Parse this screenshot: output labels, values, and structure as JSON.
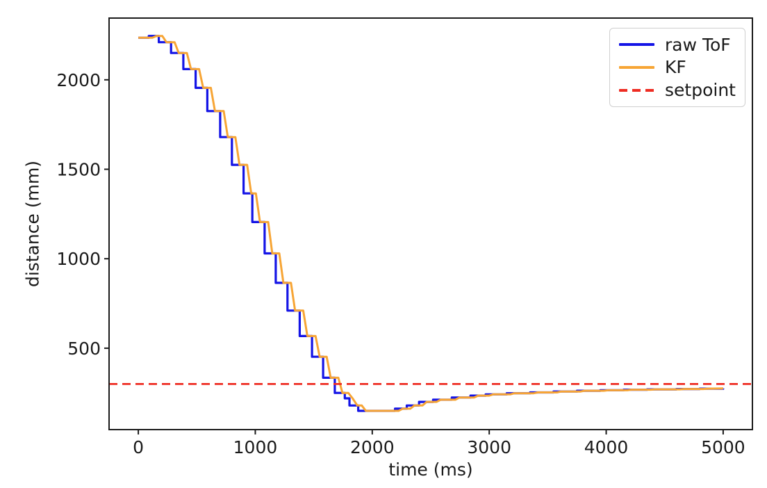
{
  "chart_data": {
    "type": "line",
    "title": "",
    "xlabel": "time (ms)",
    "ylabel": "distance (mm)",
    "xlim": [
      -250,
      5250
    ],
    "ylim": [
      45,
      2345
    ],
    "xticks": [
      0,
      1000,
      2000,
      3000,
      4000,
      5000
    ],
    "yticks": [
      500,
      1000,
      1500,
      2000
    ],
    "grid": false,
    "legend_position": "upper right",
    "setpoint_mm": 300,
    "axis_color": "#1a1a1a",
    "series": [
      {
        "name": "raw ToF",
        "color": "#1414e6",
        "width": 3.2,
        "step": true,
        "dash": null,
        "points": [
          [
            0,
            2235
          ],
          [
            90,
            2245
          ],
          [
            175,
            2210
          ],
          [
            280,
            2150
          ],
          [
            385,
            2060
          ],
          [
            490,
            1955
          ],
          [
            590,
            1825
          ],
          [
            700,
            1680
          ],
          [
            800,
            1525
          ],
          [
            900,
            1365
          ],
          [
            975,
            1205
          ],
          [
            1080,
            1030
          ],
          [
            1175,
            865
          ],
          [
            1275,
            710
          ],
          [
            1380,
            568
          ],
          [
            1485,
            452
          ],
          [
            1580,
            335
          ],
          [
            1680,
            250
          ],
          [
            1765,
            220
          ],
          [
            1805,
            180
          ],
          [
            1880,
            150
          ],
          [
            2195,
            162
          ],
          [
            2295,
            180
          ],
          [
            2400,
            200
          ],
          [
            2520,
            212
          ],
          [
            2680,
            224
          ],
          [
            2840,
            235
          ],
          [
            2970,
            242
          ],
          [
            3150,
            248
          ],
          [
            3350,
            253
          ],
          [
            3550,
            258
          ],
          [
            3750,
            262
          ],
          [
            3950,
            265
          ],
          [
            4150,
            268
          ],
          [
            4350,
            270
          ],
          [
            4600,
            272
          ],
          [
            4800,
            274
          ],
          [
            5000,
            275
          ]
        ]
      },
      {
        "name": "KF",
        "color": "#f7a535",
        "width": 3,
        "step": false,
        "dash": null,
        "points": [
          [
            0,
            2235
          ],
          [
            120,
            2235
          ],
          [
            155,
            2245
          ],
          [
            205,
            2245
          ],
          [
            240,
            2210
          ],
          [
            310,
            2210
          ],
          [
            345,
            2150
          ],
          [
            415,
            2150
          ],
          [
            450,
            2060
          ],
          [
            520,
            2060
          ],
          [
            555,
            1955
          ],
          [
            620,
            1955
          ],
          [
            655,
            1825
          ],
          [
            730,
            1825
          ],
          [
            765,
            1680
          ],
          [
            830,
            1680
          ],
          [
            865,
            1525
          ],
          [
            930,
            1525
          ],
          [
            965,
            1365
          ],
          [
            1005,
            1365
          ],
          [
            1040,
            1205
          ],
          [
            1110,
            1205
          ],
          [
            1145,
            1030
          ],
          [
            1205,
            1030
          ],
          [
            1240,
            865
          ],
          [
            1305,
            865
          ],
          [
            1340,
            710
          ],
          [
            1410,
            710
          ],
          [
            1445,
            568
          ],
          [
            1515,
            568
          ],
          [
            1550,
            452
          ],
          [
            1610,
            452
          ],
          [
            1645,
            335
          ],
          [
            1710,
            335
          ],
          [
            1745,
            250
          ],
          [
            1795,
            250
          ],
          [
            1832,
            220
          ],
          [
            1872,
            180
          ],
          [
            1910,
            180
          ],
          [
            1945,
            150
          ],
          [
            2225,
            150
          ],
          [
            2260,
            162
          ],
          [
            2325,
            162
          ],
          [
            2360,
            180
          ],
          [
            2430,
            180
          ],
          [
            2465,
            200
          ],
          [
            2550,
            200
          ],
          [
            2585,
            212
          ],
          [
            2710,
            212
          ],
          [
            2745,
            224
          ],
          [
            2870,
            224
          ],
          [
            2905,
            235
          ],
          [
            3000,
            235
          ],
          [
            3035,
            242
          ],
          [
            3180,
            242
          ],
          [
            3215,
            248
          ],
          [
            3380,
            248
          ],
          [
            3415,
            253
          ],
          [
            3580,
            253
          ],
          [
            3615,
            258
          ],
          [
            3780,
            258
          ],
          [
            3815,
            262
          ],
          [
            3980,
            262
          ],
          [
            4015,
            265
          ],
          [
            4180,
            265
          ],
          [
            4215,
            268
          ],
          [
            4380,
            268
          ],
          [
            4415,
            270
          ],
          [
            4630,
            270
          ],
          [
            4665,
            272
          ],
          [
            4830,
            272
          ],
          [
            4865,
            274
          ],
          [
            5000,
            275
          ]
        ]
      },
      {
        "name": "setpoint",
        "color": "#ee2c22",
        "width": 2.8,
        "step": false,
        "dash": "12 7",
        "points": [
          [
            -250,
            300
          ],
          [
            5250,
            300
          ]
        ]
      }
    ]
  }
}
